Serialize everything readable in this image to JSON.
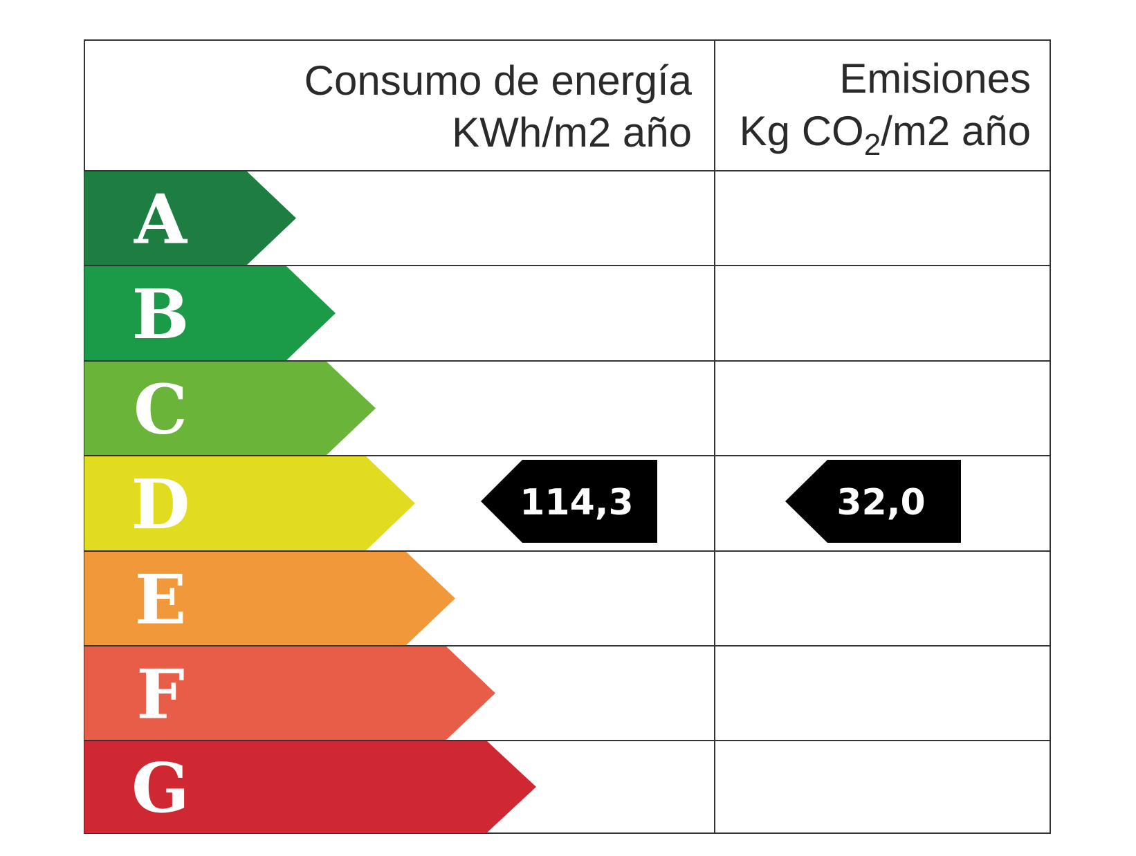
{
  "header": {
    "energy_title": "Consumo de energía",
    "energy_unit": "KWh/m2 año",
    "emissions_title": "Emisiones",
    "emissions_unit_prefix": "Kg CO",
    "emissions_unit_sub": "2",
    "emissions_unit_suffix": "/m2 año"
  },
  "classes": [
    {
      "letter": "A",
      "color": "#1e7e42"
    },
    {
      "letter": "B",
      "color": "#1b9b48"
    },
    {
      "letter": "C",
      "color": "#6ab43a"
    },
    {
      "letter": "D",
      "color": "#e2dc20"
    },
    {
      "letter": "E",
      "color": "#f0983a"
    },
    {
      "letter": "F",
      "color": "#e85d48"
    },
    {
      "letter": "G",
      "color": "#cf2832"
    }
  ],
  "rating": {
    "class": "D",
    "energy_value": "114,3",
    "emissions_value": "32,0",
    "marker_color": "#000000"
  }
}
